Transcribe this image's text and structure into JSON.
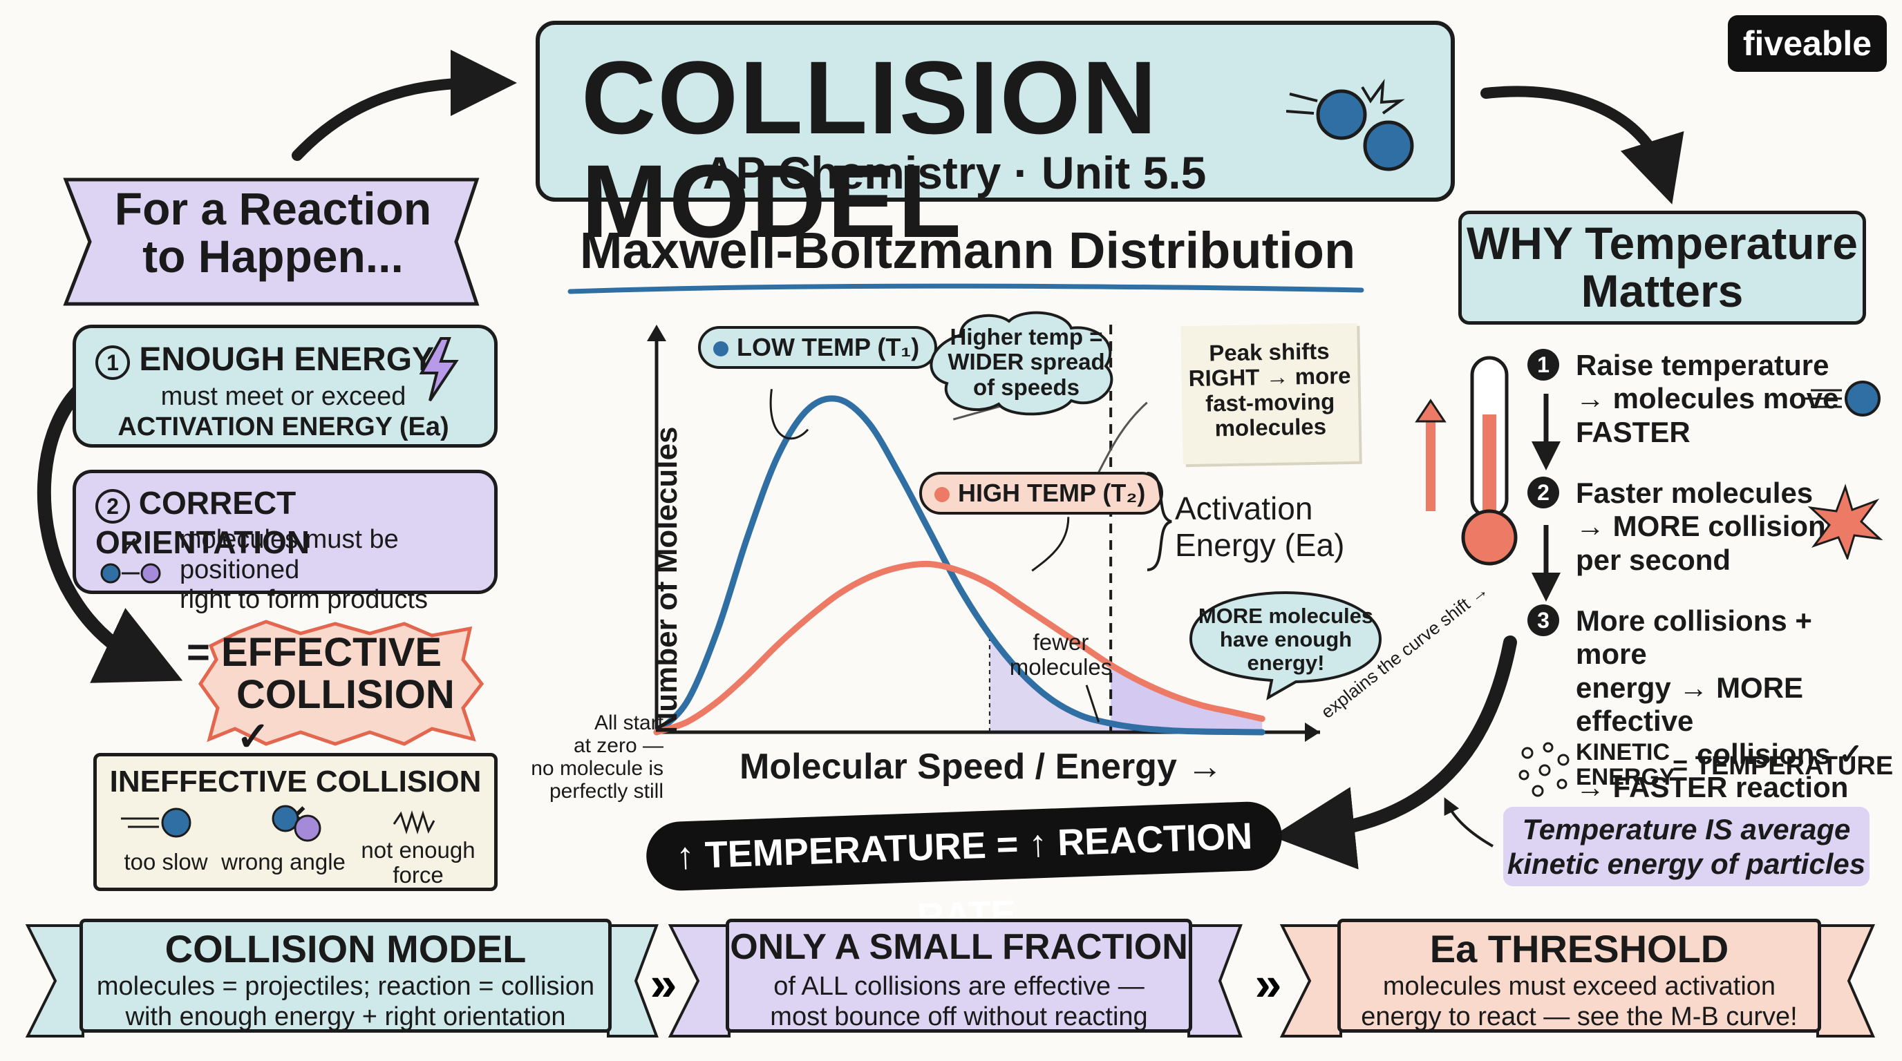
{
  "brand": "fiveable",
  "title": "COLLISION MODEL",
  "subtitle": "AP Chemistry · Unit 5.5",
  "left": {
    "banner": [
      "For a Reaction",
      "to Happen..."
    ],
    "req1": {
      "num": "1",
      "title": "ENOUGH ENERGY",
      "l1": "must meet or exceed",
      "l2": "ACTIVATION ENERGY (Ea)"
    },
    "req2": {
      "num": "2",
      "title": "CORRECT ORIENTATION",
      "l1": "molecules must be positioned",
      "l2": "right to form products"
    },
    "effective": [
      "= EFFECTIVE",
      "COLLISION ✓"
    ],
    "ineffective": {
      "title": "INEFFECTIVE COLLISION ✕",
      "items": [
        "too slow",
        "wrong angle",
        "not enough force"
      ]
    }
  },
  "center": {
    "heading": "Maxwell-Boltzmann Distribution",
    "tag_low": "LOW TEMP (T₁)",
    "tag_high": "HIGH TEMP (T₂)",
    "cloud1": [
      "Higher temp =",
      "WIDER spread",
      "of speeds"
    ],
    "note_peak": [
      "Peak shifts",
      "RIGHT → more",
      "fast-moving",
      "molecules"
    ],
    "ea_label": [
      "Activation",
      "Energy (Ea)"
    ],
    "fewer": [
      "fewer",
      "molecules"
    ],
    "more_bubble": [
      "MORE molecules",
      "have enough",
      "energy!"
    ],
    "start_note": [
      "All start",
      "at zero —",
      "no molecule is",
      "perfectly still"
    ],
    "banner": "↑ TEMPERATURE = ↑ REACTION RATE",
    "explains": "explains the curve shift →"
  },
  "chart_data": {
    "type": "line",
    "xlabel": "Molecular Speed / Energy →",
    "ylabel": "Number of Molecules",
    "series": [
      {
        "name": "LOW TEMP (T₁)",
        "color": "#2f6fa3",
        "x": [
          0,
          0.5,
          1,
          1.5,
          2,
          2.5,
          3,
          3.5,
          4,
          4.5,
          5,
          5.5,
          6,
          6.5,
          7,
          7.5,
          8,
          8.5,
          9,
          9.5,
          10
        ],
        "y": [
          0,
          9,
          30,
          58,
          82,
          96,
          99,
          92,
          77,
          60,
          43,
          29,
          18,
          10,
          5,
          2.6,
          1.2,
          0.5,
          0.2,
          0.1,
          0
        ]
      },
      {
        "name": "HIGH TEMP (T₂)",
        "color": "#ec7a65",
        "x": [
          0,
          0.5,
          1,
          1.5,
          2,
          2.5,
          3,
          3.5,
          4,
          4.5,
          5,
          5.5,
          6,
          6.5,
          7,
          7.5,
          8,
          8.5,
          9,
          9.5,
          10
        ],
        "y": [
          0,
          3,
          9,
          17,
          26,
          34,
          41,
          46,
          49,
          50,
          48,
          44,
          38,
          32,
          26,
          20,
          15,
          11,
          8,
          6,
          4
        ]
      }
    ],
    "threshold_x": 7.5,
    "xlim": [
      0,
      10.5
    ],
    "ylim": [
      0,
      115
    ]
  },
  "right": {
    "banner": [
      "WHY Temperature",
      "Matters"
    ],
    "step1": {
      "num": "1",
      "l1": "Raise temperature",
      "l2": "→ molecules move",
      "l3": "FASTER"
    },
    "step2": {
      "num": "2",
      "l1": "Faster molecules",
      "l2": "→ MORE collisions",
      "l3": "per second"
    },
    "step3": {
      "num": "3",
      "l1": "More collisions + more",
      "l2": "energy → MORE effective",
      "l3": "collisions ✓",
      "l4": "→ FASTER reaction rate"
    },
    "ke": [
      "KINETIC",
      "ENERGY",
      "= TEMPERATURE"
    ],
    "avg": [
      "Temperature IS average",
      "kinetic energy of particles"
    ]
  },
  "bottom": [
    {
      "title": "COLLISION MODEL",
      "l1": "molecules = projectiles; reaction = collision",
      "l2": "with enough energy + right orientation"
    },
    {
      "title": "ONLY A SMALL FRACTION",
      "l1": "of ALL collisions are effective —",
      "l2": "most bounce off without reacting"
    },
    {
      "title": "Ea THRESHOLD",
      "l1": "molecules must exceed activation",
      "l2": "energy to react — see the M-B curve!"
    }
  ],
  "colors": {
    "blue": "#2f6fa3",
    "coral": "#ec7a65",
    "mint": "#cfe9ea",
    "lavender": "#ddd4f4",
    "peach": "#fad9cd",
    "purple_fill": "#cbbff0"
  }
}
